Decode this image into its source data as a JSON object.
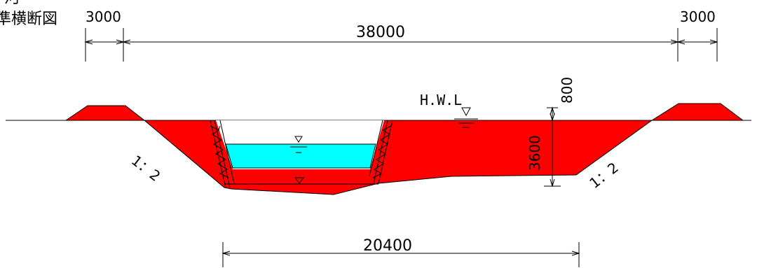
{
  "title_top": "河",
  "title": "準横断図",
  "dimensions": {
    "left_berm": "3000",
    "top_width": "38000",
    "right_berm": "3000",
    "bottom_width": "20400",
    "freeboard": "800",
    "depth": "3600"
  },
  "slopes": {
    "left": "1：2",
    "right": "1：2"
  },
  "water_level_label": "H.W.L",
  "colors": {
    "fill": "#ff0000",
    "water": "#00ffff",
    "line": "#000000"
  }
}
